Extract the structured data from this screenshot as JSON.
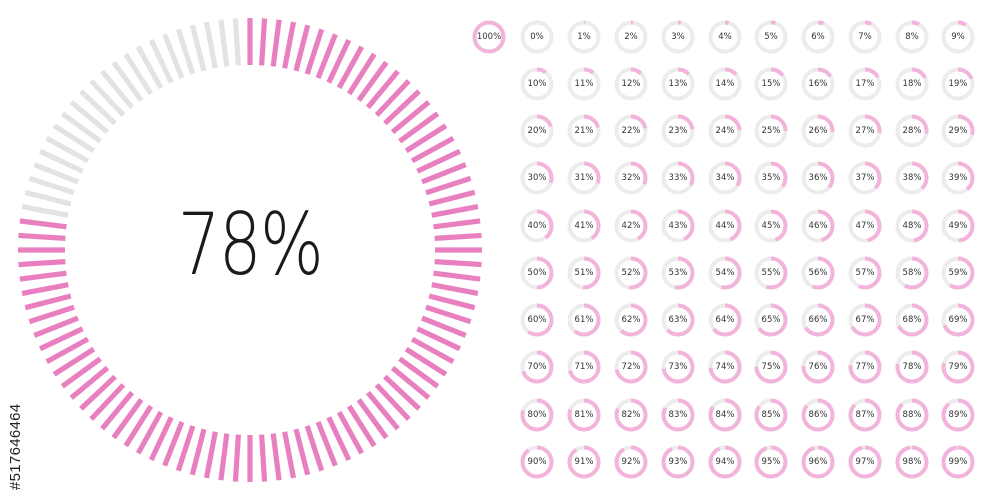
{
  "main_gauge": {
    "label": "78%",
    "value_percent": 78,
    "segments": 100,
    "fill_color": "#e880c0",
    "track_color": "#e3e3e3"
  },
  "mini_gauges": {
    "fill_color": "#f3b4dc",
    "track_color": "#ececec",
    "labels": [
      "100%",
      "0%",
      "1%",
      "2%",
      "3%",
      "4%",
      "5%",
      "6%",
      "7%",
      "8%",
      "9%",
      "10%",
      "11%",
      "12%",
      "13%",
      "14%",
      "15%",
      "16%",
      "17%",
      "18%",
      "19%",
      "20%",
      "21%",
      "22%",
      "23%",
      "24%",
      "25%",
      "26%",
      "27%",
      "28%",
      "29%",
      "30%",
      "31%",
      "32%",
      "33%",
      "34%",
      "35%",
      "36%",
      "37%",
      "38%",
      "39%",
      "40%",
      "41%",
      "42%",
      "43%",
      "44%",
      "45%",
      "46%",
      "47%",
      "48%",
      "49%",
      "50%",
      "51%",
      "52%",
      "53%",
      "54%",
      "55%",
      "56%",
      "57%",
      "58%",
      "59%",
      "60%",
      "61%",
      "62%",
      "63%",
      "64%",
      "65%",
      "66%",
      "67%",
      "68%",
      "69%",
      "70%",
      "71%",
      "72%",
      "73%",
      "74%",
      "75%",
      "76%",
      "77%",
      "78%",
      "79%",
      "80%",
      "81%",
      "82%",
      "83%",
      "84%",
      "85%",
      "86%",
      "87%",
      "88%",
      "89%",
      "90%",
      "91%",
      "92%",
      "93%",
      "94%",
      "95%",
      "96%",
      "97%",
      "98%",
      "99%"
    ],
    "values": [
      100,
      0,
      1,
      2,
      3,
      4,
      5,
      6,
      7,
      8,
      9,
      10,
      11,
      12,
      13,
      14,
      15,
      16,
      17,
      18,
      19,
      20,
      21,
      22,
      23,
      24,
      25,
      26,
      27,
      28,
      29,
      30,
      31,
      32,
      33,
      34,
      35,
      36,
      37,
      38,
      39,
      40,
      41,
      42,
      43,
      44,
      45,
      46,
      47,
      48,
      49,
      50,
      51,
      52,
      53,
      54,
      55,
      56,
      57,
      58,
      59,
      60,
      61,
      62,
      63,
      64,
      65,
      66,
      67,
      68,
      69,
      70,
      71,
      72,
      73,
      74,
      75,
      76,
      77,
      78,
      79,
      80,
      81,
      82,
      83,
      84,
      85,
      86,
      87,
      88,
      89,
      90,
      91,
      92,
      93,
      94,
      95,
      96,
      97,
      98,
      99
    ]
  },
  "watermark": "#517646464"
}
